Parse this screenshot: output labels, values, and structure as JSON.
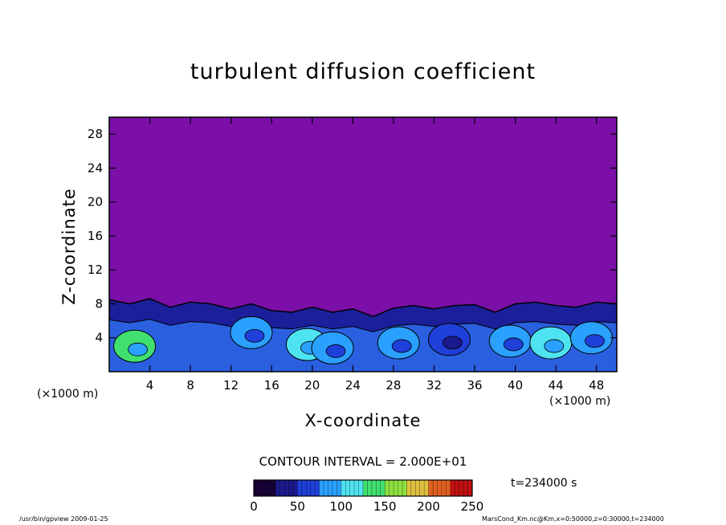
{
  "chart_data": {
    "type": "heatmap",
    "title": "turbulent diffusion coefficient",
    "xlabel": "X-coordinate",
    "ylabel": "Z-coordinate",
    "x_unit": "(×1000 m)",
    "y_unit": "(×1000 m)",
    "xlim": [
      0,
      50
    ],
    "ylim": [
      0,
      30
    ],
    "x_ticks": [
      4,
      8,
      12,
      16,
      20,
      24,
      28,
      32,
      36,
      40,
      44,
      48
    ],
    "y_ticks": [
      4,
      8,
      12,
      16,
      20,
      24,
      28
    ],
    "colorbar": {
      "min": 0,
      "max": 250,
      "ticks": [
        0,
        50,
        100,
        150,
        200,
        250
      ],
      "colors": [
        "#170033",
        "#1a1a8c",
        "#1f3fd9",
        "#2aa0ff",
        "#4ee3f0",
        "#40e070",
        "#8fe040",
        "#e0c040",
        "#e06020",
        "#c01010"
      ]
    },
    "background_value": 0,
    "background_color": "#7b0fa8",
    "turbulent_layer": {
      "top_profile": [
        [
          0,
          8.5
        ],
        [
          2,
          8.0
        ],
        [
          4,
          8.6
        ],
        [
          6,
          7.6
        ],
        [
          8,
          8.2
        ],
        [
          10,
          8.0
        ],
        [
          12,
          7.4
        ],
        [
          14,
          8.0
        ],
        [
          16,
          7.2
        ],
        [
          18,
          7.0
        ],
        [
          20,
          7.6
        ],
        [
          22,
          7.0
        ],
        [
          24,
          7.4
        ],
        [
          26,
          6.5
        ],
        [
          28,
          7.5
        ],
        [
          30,
          7.8
        ],
        [
          32,
          7.4
        ],
        [
          34,
          7.8
        ],
        [
          36,
          7.9
        ],
        [
          38,
          7.0
        ],
        [
          40,
          8.0
        ],
        [
          42,
          8.2
        ],
        [
          44,
          7.8
        ],
        [
          46,
          7.6
        ],
        [
          48,
          8.2
        ],
        [
          50,
          8.0
        ]
      ],
      "cells": [
        {
          "x": 2.5,
          "z": 3.0,
          "value": 130
        },
        {
          "x": 14.0,
          "z": 4.6,
          "value": 95
        },
        {
          "x": 19.5,
          "z": 3.2,
          "value": 115
        },
        {
          "x": 22.0,
          "z": 2.8,
          "value": 90
        },
        {
          "x": 28.5,
          "z": 3.4,
          "value": 85
        },
        {
          "x": 33.5,
          "z": 3.8,
          "value": 70
        },
        {
          "x": 39.5,
          "z": 3.6,
          "value": 95
        },
        {
          "x": 43.5,
          "z": 3.4,
          "value": 110
        },
        {
          "x": 47.5,
          "z": 4.0,
          "value": 75
        }
      ]
    },
    "contour_interval_label": "CONTOUR INTERVAL = 2.000E+01",
    "time_label": "t=234000 s"
  },
  "footer": {
    "left": "/usr/bin/gpview   2009-01-25",
    "right": "MarsCond_Km.nc@Km,x=0:50000,z=0:30000,t=234000"
  }
}
